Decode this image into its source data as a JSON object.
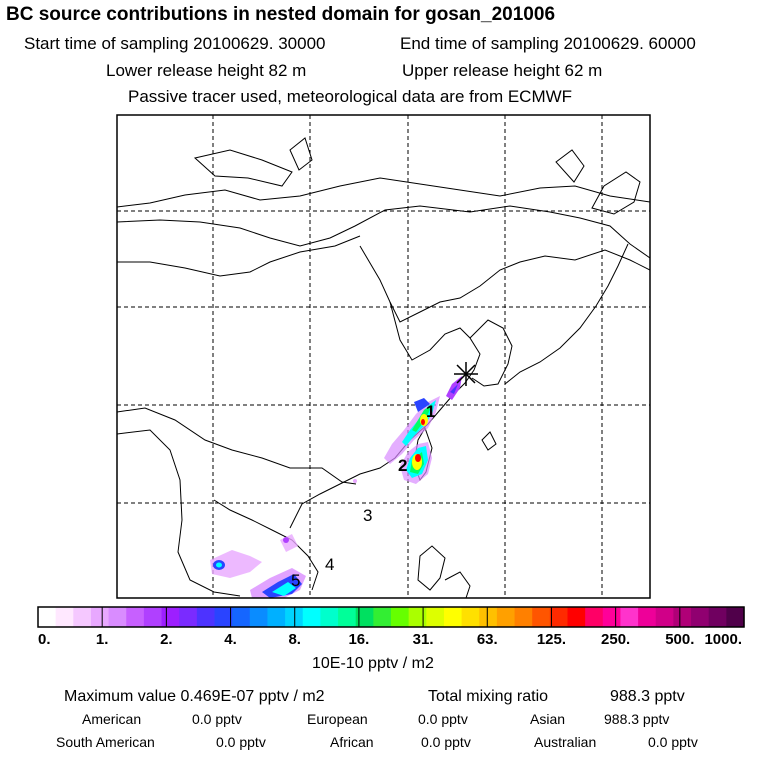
{
  "header": {
    "title": "BC  source contributions in nested domain for gosan_201006",
    "start_time": "Start time of sampling 20100629. 30000",
    "end_time": "End time of sampling 20100629. 60000",
    "lower_height": "Lower release height   82 m",
    "upper_height": "Upper release height   62 m",
    "tracer_note": "Passive tracer used, meteorological data are from ECMWF"
  },
  "map": {
    "receptor_marker": "star-receptor-icon",
    "region_labels": [
      "1",
      "2",
      "3",
      "4",
      "5"
    ],
    "plume_colors": [
      "#cc00ff",
      "#0000ff",
      "#00ffff",
      "#00ff66",
      "#ffff00",
      "#ff0000"
    ]
  },
  "colorbar": {
    "colors": [
      "#ffffff",
      "#ffe8ff",
      "#f5c8ff",
      "#e8a8ff",
      "#d98cff",
      "#c760ff",
      "#b040ff",
      "#9d1fff",
      "#7a2bff",
      "#4d33ff",
      "#2a44ff",
      "#1566ff",
      "#0a8cff",
      "#00b0ff",
      "#00d4ff",
      "#00ffff",
      "#00ffcc",
      "#00ff99",
      "#00e060",
      "#33ee33",
      "#66ff00",
      "#aaff00",
      "#ddff00",
      "#ffff00",
      "#ffe000",
      "#ffc000",
      "#ffa000",
      "#ff8000",
      "#ff5500",
      "#ff2a00",
      "#ff0000",
      "#ff0066",
      "#ff0099",
      "#ff33cc",
      "#ee0099",
      "#d00088",
      "#b00077",
      "#900070",
      "#700060",
      "#50004a"
    ],
    "tick_labels": [
      "0.",
      "1.",
      "2.",
      "4.",
      "8.",
      "16.",
      "31.",
      "63.",
      "125.",
      "250.",
      "500.",
      "1000."
    ],
    "units": "10E-10 pptv / m2"
  },
  "summary": {
    "max_label": "Maximum value  0.469E-07 pptv / m2",
    "total_label": "Total mixing ratio",
    "total_value": "988.3 pptv"
  },
  "contributions": [
    {
      "name": "American",
      "value": "0.0 pptv"
    },
    {
      "name": "European",
      "value": "0.0 pptv"
    },
    {
      "name": "Asian",
      "value": "988.3 pptv"
    },
    {
      "name": "South American",
      "value": "0.0 pptv"
    },
    {
      "name": "African",
      "value": "0.0 pptv"
    },
    {
      "name": "Australian",
      "value": "0.0 pptv"
    }
  ]
}
